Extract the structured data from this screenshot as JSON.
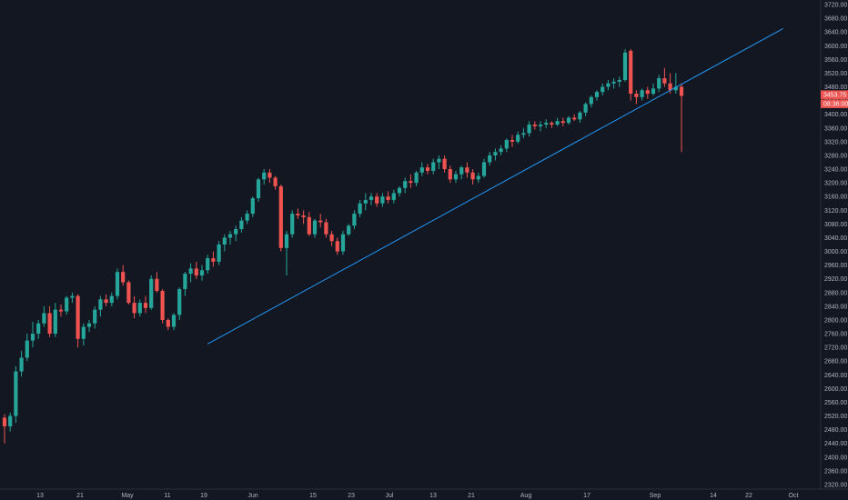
{
  "chart_data": {
    "type": "candlestick",
    "colors": {
      "background": "#131722",
      "up": "#26a69a",
      "down": "#ef5350",
      "trendline": "#2196f3",
      "axis_text": "#b2b5be",
      "price_tag": "#ef5350"
    },
    "y_ticks": [
      "3720.00",
      "3680.00",
      "3640.00",
      "3600.00",
      "3560.00",
      "3520.00",
      "3480.00",
      "3440.00",
      "3400.00",
      "3360.00",
      "3320.00",
      "3280.00",
      "3240.00",
      "3200.00",
      "3160.00",
      "3120.00",
      "3080.00",
      "3040.00",
      "3000.00",
      "2960.00",
      "2920.00",
      "2880.00",
      "2840.00",
      "2800.00",
      "2760.00",
      "2720.00",
      "2680.00",
      "2640.00",
      "2600.00",
      "2560.00",
      "2520.00",
      "2480.00",
      "2440.00",
      "2400.00",
      "2360.00",
      "2320.00"
    ],
    "x_ticks": [
      "13",
      "21",
      "May",
      "11",
      "19",
      "Jun",
      "15",
      "23",
      "Jul",
      "13",
      "21",
      "Aug",
      "17",
      "Sep",
      "14",
      "22",
      "Oct"
    ],
    "price_tags": [
      "3453.75",
      "08:36:00"
    ],
    "ylim": [
      2320,
      3720
    ],
    "trendline": {
      "from": {
        "index": 36,
        "price": 2730
      },
      "to": {
        "index": 138,
        "price": 3650
      }
    },
    "candles": [
      [
        2515,
        2525,
        2440,
        2490
      ],
      [
        2490,
        2530,
        2475,
        2520
      ],
      [
        2520,
        2665,
        2500,
        2650
      ],
      [
        2650,
        2710,
        2635,
        2690
      ],
      [
        2690,
        2760,
        2680,
        2740
      ],
      [
        2740,
        2795,
        2720,
        2760
      ],
      [
        2760,
        2800,
        2745,
        2790
      ],
      [
        2790,
        2840,
        2780,
        2820
      ],
      [
        2820,
        2840,
        2750,
        2760
      ],
      [
        2760,
        2850,
        2750,
        2830
      ],
      [
        2830,
        2845,
        2810,
        2825
      ],
      [
        2825,
        2870,
        2815,
        2865
      ],
      [
        2865,
        2880,
        2850,
        2870
      ],
      [
        2870,
        2875,
        2720,
        2745
      ],
      [
        2745,
        2790,
        2725,
        2780
      ],
      [
        2780,
        2800,
        2765,
        2790
      ],
      [
        2790,
        2840,
        2775,
        2830
      ],
      [
        2830,
        2870,
        2810,
        2860
      ],
      [
        2860,
        2875,
        2840,
        2850
      ],
      [
        2850,
        2880,
        2840,
        2870
      ],
      [
        2870,
        2950,
        2860,
        2940
      ],
      [
        2940,
        2960,
        2900,
        2910
      ],
      [
        2910,
        2915,
        2845,
        2850
      ],
      [
        2850,
        2870,
        2805,
        2820
      ],
      [
        2820,
        2860,
        2810,
        2850
      ],
      [
        2850,
        2870,
        2820,
        2835
      ],
      [
        2835,
        2930,
        2830,
        2920
      ],
      [
        2920,
        2940,
        2880,
        2885
      ],
      [
        2885,
        2890,
        2790,
        2800
      ],
      [
        2800,
        2805,
        2770,
        2780
      ],
      [
        2780,
        2820,
        2770,
        2815
      ],
      [
        2815,
        2895,
        2800,
        2890
      ],
      [
        2890,
        2940,
        2870,
        2935
      ],
      [
        2935,
        2965,
        2910,
        2950
      ],
      [
        2950,
        2970,
        2920,
        2930
      ],
      [
        2930,
        2960,
        2915,
        2945
      ],
      [
        2945,
        2990,
        2935,
        2980
      ],
      [
        2980,
        3000,
        2955,
        2970
      ],
      [
        2970,
        3030,
        2960,
        3020
      ],
      [
        3020,
        3050,
        3000,
        3040
      ],
      [
        3040,
        3060,
        3020,
        3050
      ],
      [
        3050,
        3075,
        3030,
        3065
      ],
      [
        3065,
        3100,
        3055,
        3090
      ],
      [
        3090,
        3120,
        3080,
        3110
      ],
      [
        3110,
        3160,
        3100,
        3155
      ],
      [
        3155,
        3215,
        3145,
        3210
      ],
      [
        3210,
        3240,
        3195,
        3230
      ],
      [
        3230,
        3240,
        3200,
        3215
      ],
      [
        3215,
        3220,
        3180,
        3190
      ],
      [
        3190,
        3195,
        3000,
        3010
      ],
      [
        3010,
        3060,
        2930,
        3050
      ],
      [
        3050,
        3120,
        3040,
        3110
      ],
      [
        3110,
        3125,
        3095,
        3105
      ],
      [
        3105,
        3120,
        3080,
        3100
      ],
      [
        3100,
        3115,
        3045,
        3050
      ],
      [
        3050,
        3095,
        3040,
        3090
      ],
      [
        3090,
        3110,
        3070,
        3085
      ],
      [
        3085,
        3095,
        3040,
        3050
      ],
      [
        3050,
        3060,
        3015,
        3030
      ],
      [
        3030,
        3040,
        2990,
        3000
      ],
      [
        3000,
        3060,
        2990,
        3050
      ],
      [
        3050,
        3080,
        3045,
        3075
      ],
      [
        3075,
        3120,
        3065,
        3110
      ],
      [
        3110,
        3150,
        3100,
        3140
      ],
      [
        3140,
        3170,
        3120,
        3150
      ],
      [
        3150,
        3170,
        3135,
        3160
      ],
      [
        3160,
        3170,
        3130,
        3140
      ],
      [
        3140,
        3170,
        3130,
        3160
      ],
      [
        3160,
        3175,
        3140,
        3150
      ],
      [
        3150,
        3180,
        3140,
        3170
      ],
      [
        3170,
        3190,
        3160,
        3185
      ],
      [
        3185,
        3215,
        3170,
        3205
      ],
      [
        3205,
        3225,
        3185,
        3200
      ],
      [
        3200,
        3235,
        3190,
        3230
      ],
      [
        3230,
        3260,
        3220,
        3245
      ],
      [
        3245,
        3255,
        3225,
        3235
      ],
      [
        3235,
        3270,
        3225,
        3260
      ],
      [
        3260,
        3280,
        3240,
        3270
      ],
      [
        3270,
        3280,
        3230,
        3240
      ],
      [
        3240,
        3250,
        3200,
        3210
      ],
      [
        3210,
        3235,
        3200,
        3225
      ],
      [
        3225,
        3250,
        3210,
        3245
      ],
      [
        3245,
        3260,
        3215,
        3230
      ],
      [
        3230,
        3240,
        3195,
        3210
      ],
      [
        3210,
        3230,
        3200,
        3220
      ],
      [
        3220,
        3270,
        3215,
        3260
      ],
      [
        3260,
        3290,
        3250,
        3280
      ],
      [
        3280,
        3300,
        3265,
        3290
      ],
      [
        3290,
        3310,
        3280,
        3300
      ],
      [
        3300,
        3330,
        3290,
        3325
      ],
      [
        3325,
        3340,
        3305,
        3320
      ],
      [
        3320,
        3350,
        3315,
        3340
      ],
      [
        3340,
        3360,
        3330,
        3345
      ],
      [
        3345,
        3380,
        3335,
        3370
      ],
      [
        3370,
        3380,
        3355,
        3365
      ],
      [
        3365,
        3380,
        3350,
        3370
      ],
      [
        3370,
        3385,
        3360,
        3375
      ],
      [
        3375,
        3380,
        3360,
        3370
      ],
      [
        3370,
        3390,
        3365,
        3380
      ],
      [
        3380,
        3390,
        3365,
        3375
      ],
      [
        3375,
        3395,
        3370,
        3390
      ],
      [
        3390,
        3400,
        3380,
        3385
      ],
      [
        3385,
        3410,
        3375,
        3405
      ],
      [
        3405,
        3435,
        3395,
        3430
      ],
      [
        3430,
        3455,
        3420,
        3450
      ],
      [
        3450,
        3470,
        3440,
        3465
      ],
      [
        3465,
        3490,
        3455,
        3480
      ],
      [
        3480,
        3500,
        3470,
        3490
      ],
      [
        3490,
        3505,
        3475,
        3495
      ],
      [
        3495,
        3510,
        3480,
        3500
      ],
      [
        3500,
        3590,
        3495,
        3580
      ],
      [
        3585,
        3590,
        3440,
        3460
      ],
      [
        3460,
        3470,
        3430,
        3450
      ],
      [
        3450,
        3475,
        3440,
        3470
      ],
      [
        3470,
        3480,
        3445,
        3460
      ],
      [
        3460,
        3490,
        3455,
        3475
      ],
      [
        3475,
        3515,
        3465,
        3505
      ],
      [
        3505,
        3535,
        3480,
        3490
      ],
      [
        3490,
        3520,
        3460,
        3470
      ],
      [
        3470,
        3520,
        3460,
        3480
      ],
      [
        3480,
        3490,
        3290,
        3453.75
      ]
    ]
  }
}
